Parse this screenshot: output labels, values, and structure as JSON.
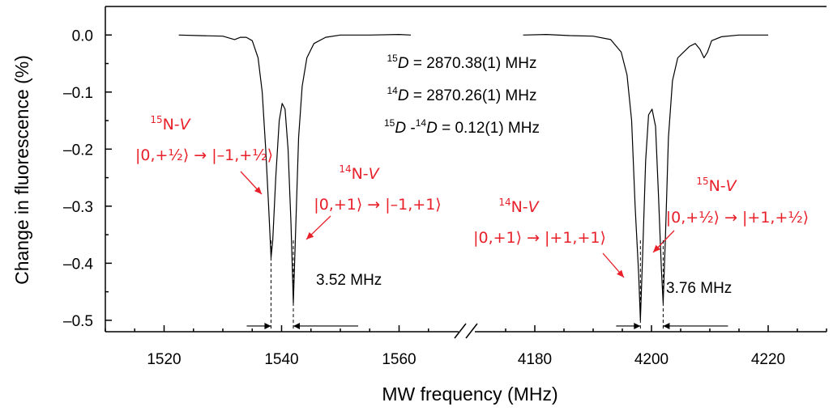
{
  "chart_data": {
    "type": "line",
    "title": "",
    "xlabel": "MW frequency (MHz)",
    "ylabel": "Change in fluorescence (%)",
    "ylim": [
      -0.52,
      0.05
    ],
    "y_ticks": [
      0.0,
      -0.1,
      -0.2,
      -0.3,
      -0.4,
      -0.5
    ],
    "y_tick_labels": [
      "0.0",
      "–0.1",
      "–0.2",
      "–0.3",
      "–0.4",
      "–0.5"
    ],
    "broken_x_axis": true,
    "x_segments": [
      {
        "xlim": [
          1510,
          1570
        ],
        "ticks": [
          1520,
          1540,
          1560
        ],
        "tick_labels": [
          "1520",
          "1540",
          "1560"
        ]
      },
      {
        "xlim": [
          4170,
          4230
        ],
        "ticks": [
          4180,
          4200,
          4220
        ],
        "tick_labels": [
          "4180",
          "4200",
          "4220"
        ]
      }
    ],
    "grid": false,
    "series": [
      {
        "points": [
          [
            1522.5,
            0.0
          ],
          [
            1526,
            -0.001
          ],
          [
            1530,
            -0.002
          ],
          [
            1532,
            -0.008
          ],
          [
            1533,
            -0.004
          ],
          [
            1534,
            -0.004
          ],
          [
            1535,
            -0.01
          ],
          [
            1536,
            -0.04
          ],
          [
            1536.7,
            -0.1
          ],
          [
            1537.3,
            -0.2
          ],
          [
            1537.8,
            -0.3
          ],
          [
            1538.2,
            -0.39
          ],
          [
            1538.5,
            -0.36
          ],
          [
            1539,
            -0.25
          ],
          [
            1539.6,
            -0.15
          ],
          [
            1540.1,
            -0.12
          ],
          [
            1540.6,
            -0.13
          ],
          [
            1541.1,
            -0.2
          ],
          [
            1541.6,
            -0.33
          ],
          [
            1542,
            -0.47
          ],
          [
            1542.4,
            -0.34
          ],
          [
            1542.9,
            -0.18
          ],
          [
            1543.5,
            -0.09
          ],
          [
            1544.3,
            -0.04
          ],
          [
            1545.5,
            -0.015
          ],
          [
            1547.5,
            -0.004
          ],
          [
            1550,
            0.0
          ],
          [
            1555,
            0.0
          ],
          [
            1560,
            0.001
          ],
          [
            1562,
            0.0
          ]
        ]
      },
      {
        "points": [
          [
            4178,
            0.0
          ],
          [
            4182,
            0.001
          ],
          [
            4186,
            -0.001
          ],
          [
            4190,
            -0.002
          ],
          [
            4193,
            -0.008
          ],
          [
            4194.8,
            -0.03
          ],
          [
            4195.8,
            -0.07
          ],
          [
            4196.6,
            -0.15
          ],
          [
            4197.2,
            -0.3
          ],
          [
            4197.8,
            -0.42
          ],
          [
            4198.1,
            -0.5
          ],
          [
            4198.5,
            -0.38
          ],
          [
            4199.0,
            -0.22
          ],
          [
            4199.5,
            -0.14
          ],
          [
            4200.1,
            -0.13
          ],
          [
            4200.7,
            -0.16
          ],
          [
            4201.2,
            -0.28
          ],
          [
            4201.7,
            -0.41
          ],
          [
            4202.0,
            -0.47
          ],
          [
            4202.4,
            -0.35
          ],
          [
            4202.9,
            -0.18
          ],
          [
            4203.6,
            -0.08
          ],
          [
            4204.5,
            -0.04
          ],
          [
            4205.5,
            -0.03
          ],
          [
            4206.5,
            -0.02
          ],
          [
            4207.5,
            -0.015
          ],
          [
            4208.3,
            -0.025
          ],
          [
            4209,
            -0.04
          ],
          [
            4209.6,
            -0.03
          ],
          [
            4210.3,
            -0.01
          ],
          [
            4212,
            -0.003
          ],
          [
            4215,
            0.0
          ],
          [
            4220,
            0.0
          ]
        ]
      }
    ],
    "annotations": {
      "d15": {
        "sup": "15",
        "sym": "D",
        "rest": " = 2870.38(1) MHz"
      },
      "d14": {
        "sup": "14",
        "sym": "D",
        "rest": " = 2870.26(1) MHz"
      },
      "ddiff": {
        "sup1": "15",
        "sym1": "D",
        "mid": " -",
        "sup2": "14",
        "sym2": "D",
        "rest": " = 0.12(1) MHz"
      },
      "peaks": [
        {
          "iso": "15",
          "n": "N-",
          "v": "V",
          "transition": "|0,+½⟩ → |–1,+½⟩",
          "x": 1538.2,
          "y": -0.39
        },
        {
          "iso": "14",
          "n": "N-",
          "v": "V",
          "transition": "|0,+1⟩ → |–1,+1⟩",
          "x": 1542.0,
          "y": -0.47
        },
        {
          "iso": "14",
          "n": "N-",
          "v": "V",
          "transition": "|0,+1⟩ → |+1,+1⟩",
          "x": 4198.1,
          "y": -0.5
        },
        {
          "iso": "15",
          "n": "N-",
          "v": "V",
          "transition": "|0,+½⟩ → |+1,+½⟩",
          "x": 4202.0,
          "y": -0.47
        }
      ],
      "splittings": [
        {
          "label": "3.52 MHz",
          "x1": 1538.2,
          "x2": 1542.0
        },
        {
          "label": "3.76 MHz",
          "x1": 4198.1,
          "x2": 4202.0
        }
      ]
    },
    "colors": {
      "trace": "#000000",
      "annotation": "#e8202a"
    }
  }
}
